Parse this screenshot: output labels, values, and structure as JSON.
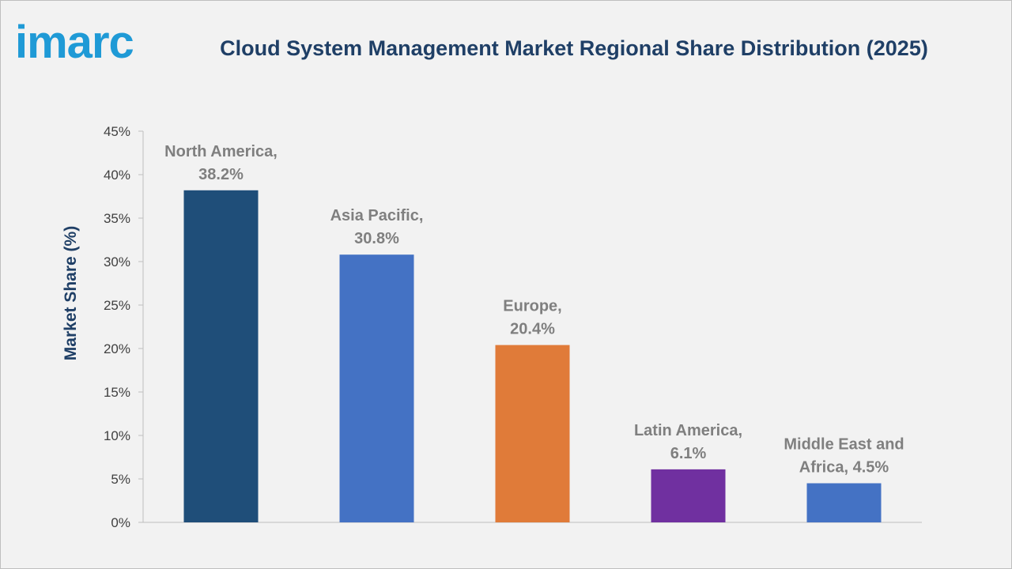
{
  "brand": {
    "logo_text": "imarc",
    "logo_color": "#1f9ad6"
  },
  "chart_data": {
    "type": "bar",
    "title": "Cloud System Management Market Regional Share Distribution (2025)",
    "xlabel": "",
    "ylabel": "Market Share (%)",
    "ylim": [
      0,
      45
    ],
    "ytick_step": 5,
    "ytick_labels": [
      "0%",
      "5%",
      "10%",
      "15%",
      "20%",
      "25%",
      "30%",
      "35%",
      "40%",
      "45%"
    ],
    "grid": false,
    "legend": "none",
    "categories": [
      "North America",
      "Asia Pacific",
      "Europe",
      "Latin America",
      "Middle East and Africa"
    ],
    "values": [
      38.2,
      30.8,
      20.4,
      6.1,
      4.5
    ],
    "data_labels": [
      [
        "North America,",
        "38.2%"
      ],
      [
        "Asia Pacific,",
        "30.8%"
      ],
      [
        "Europe,",
        "20.4%"
      ],
      [
        "Latin America,",
        "6.1%"
      ],
      [
        "Middle East and",
        "Africa, 4.5%"
      ]
    ],
    "colors": [
      "#1f4e79",
      "#4472c4",
      "#e07b39",
      "#7030a0",
      "#4472c4"
    ]
  }
}
